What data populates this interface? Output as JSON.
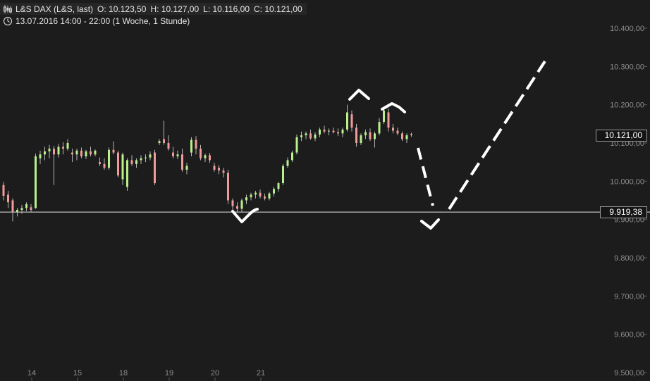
{
  "header": {
    "symbol": "L&S DAX (L&S, last)",
    "open": "O: 10.123,50",
    "high": "H: 10.127,00",
    "low": "L: 10.116,00",
    "close": "C: 10.121,00",
    "period": "13.07.2016 14:00 - 22:00 (1 Woche, 1 Stunde)",
    "chart_icon": "candlestick-icon",
    "time_icon": "clock-icon"
  },
  "colors": {
    "background": "#1c1c1c",
    "up": "#b8f08a",
    "down": "#f29a9a",
    "wick": "#b5b5b5",
    "axis_text": "#8c8c8c",
    "reference_line": "#e8e8e8",
    "annotation": "#ffffff"
  },
  "labels": {
    "last_price": "10.121,00",
    "reference_price": "9.919,38"
  },
  "chart_data": {
    "type": "candlestick",
    "title": "L&S DAX (L&S, last)",
    "ylim": [
      9500,
      10450
    ],
    "y_ticks": [
      {
        "value": 10400,
        "label": "10.400,00"
      },
      {
        "value": 10300,
        "label": "10.300,00"
      },
      {
        "value": 10200,
        "label": "10.200,00"
      },
      {
        "value": 10100,
        "label": "10.100,00"
      },
      {
        "value": 10000,
        "label": "10.000,00"
      },
      {
        "value": 9900,
        "label": "9.900,00"
      },
      {
        "value": 9800,
        "label": "9.800,00"
      },
      {
        "value": 9700,
        "label": "9.700,00"
      },
      {
        "value": 9600,
        "label": "9.600,00"
      },
      {
        "value": 9500,
        "label": "9.500,00"
      }
    ],
    "x_ticks": [
      {
        "index": 6,
        "label": "14"
      },
      {
        "index": 16,
        "label": "15"
      },
      {
        "index": 26,
        "label": "18"
      },
      {
        "index": 36,
        "label": "19"
      },
      {
        "index": 46,
        "label": "20"
      },
      {
        "index": 56,
        "label": "21"
      }
    ],
    "last_price": 10121.0,
    "reference_level": 9919.38,
    "ohlc": [
      [
        9990,
        9998,
        9950,
        9962
      ],
      [
        9965,
        9975,
        9930,
        9945
      ],
      [
        9950,
        9955,
        9895,
        9920
      ],
      [
        9920,
        9930,
        9908,
        9925
      ],
      [
        9925,
        9938,
        9915,
        9930
      ],
      [
        9930,
        9945,
        9922,
        9940
      ],
      [
        9932,
        9940,
        9920,
        9925
      ],
      [
        9930,
        10072,
        9928,
        10065
      ],
      [
        10060,
        10080,
        10045,
        10070
      ],
      [
        10070,
        10090,
        10055,
        10078
      ],
      [
        10078,
        10095,
        10060,
        10085
      ],
      [
        10085,
        10092,
        9990,
        10070
      ],
      [
        10070,
        10098,
        10062,
        10090
      ],
      [
        10090,
        10102,
        10070,
        10085
      ],
      [
        10085,
        10110,
        10080,
        10100
      ],
      [
        10075,
        10085,
        10050,
        10070
      ],
      [
        10070,
        10085,
        10055,
        10080
      ],
      [
        10080,
        10088,
        10060,
        10065
      ],
      [
        10065,
        10082,
        10058,
        10078
      ],
      [
        10078,
        10090,
        10065,
        10070
      ],
      [
        10070,
        10083,
        10065,
        10080
      ],
      [
        10050,
        10062,
        10040,
        10045
      ],
      [
        10045,
        10060,
        10030,
        10035
      ],
      [
        10035,
        10088,
        10030,
        10082
      ],
      [
        10082,
        10104,
        10070,
        10075
      ],
      [
        10075,
        10080,
        10010,
        10015
      ],
      [
        10005,
        10075,
        9990,
        10070
      ],
      [
        9985,
        10060,
        9975,
        10055
      ],
      [
        10055,
        10068,
        10040,
        10045
      ],
      [
        10045,
        10060,
        10035,
        10055
      ],
      [
        10055,
        10068,
        10045,
        10060
      ],
      [
        10060,
        10070,
        10050,
        10062
      ],
      [
        10062,
        10078,
        10055,
        10070
      ],
      [
        10075,
        10082,
        9990,
        9995
      ],
      [
        10100,
        10110,
        10095,
        10105
      ],
      [
        10110,
        10158,
        10095,
        10100
      ],
      [
        10100,
        10120,
        10080,
        10085
      ],
      [
        10075,
        10090,
        10060,
        10065
      ],
      [
        10065,
        10080,
        10058,
        10070
      ],
      [
        10070,
        10085,
        10025,
        10030
      ],
      [
        10030,
        10048,
        10018,
        10040
      ],
      [
        10075,
        10115,
        10065,
        10108
      ],
      [
        10108,
        10118,
        10070,
        10085
      ],
      [
        10085,
        10095,
        10055,
        10060
      ],
      [
        10060,
        10072,
        10050,
        10068
      ],
      [
        10068,
        10074,
        10048,
        10055
      ],
      [
        10040,
        10048,
        10025,
        10030
      ],
      [
        10035,
        10042,
        10018,
        10028
      ],
      [
        10028,
        10035,
        10010,
        10022
      ],
      [
        10022,
        10030,
        9940,
        9950
      ],
      [
        9950,
        9955,
        9920,
        9935
      ],
      [
        9935,
        9945,
        9918,
        9928
      ],
      [
        9928,
        9955,
        9920,
        9950
      ],
      [
        9950,
        9965,
        9940,
        9958
      ],
      [
        9958,
        9970,
        9950,
        9965
      ],
      [
        9965,
        9975,
        9955,
        9970
      ],
      [
        9970,
        9978,
        9955,
        9960
      ],
      [
        9960,
        9968,
        9950,
        9955
      ],
      [
        9955,
        9972,
        9950,
        9968
      ],
      [
        9968,
        9985,
        9960,
        9980
      ],
      [
        9980,
        9998,
        9972,
        9995
      ],
      [
        9995,
        10045,
        9990,
        10040
      ],
      [
        10040,
        10062,
        10035,
        10055
      ],
      [
        10055,
        10080,
        10050,
        10075
      ],
      [
        10075,
        10122,
        10070,
        10115
      ],
      [
        10115,
        10130,
        10105,
        10120
      ],
      [
        10120,
        10130,
        10110,
        10125
      ],
      [
        10125,
        10135,
        10108,
        10112
      ],
      [
        10112,
        10128,
        10105,
        10122
      ],
      [
        10122,
        10140,
        10115,
        10135
      ],
      [
        10135,
        10145,
        10125,
        10130
      ],
      [
        10130,
        10138,
        10120,
        10132
      ],
      [
        10132,
        10140,
        10125,
        10128
      ],
      [
        10128,
        10138,
        10118,
        10125
      ],
      [
        10125,
        10140,
        10115,
        10135
      ],
      [
        10135,
        10200,
        10130,
        10180
      ],
      [
        10175,
        10185,
        10130,
        10140
      ],
      [
        10140,
        10150,
        10090,
        10100
      ],
      [
        10100,
        10125,
        10095,
        10120
      ],
      [
        10120,
        10135,
        10110,
        10128
      ],
      [
        10128,
        10138,
        10105,
        10110
      ],
      [
        10110,
        10130,
        10088,
        10125
      ],
      [
        10125,
        10165,
        10120,
        10155
      ],
      [
        10155,
        10195,
        10150,
        10185
      ],
      [
        10180,
        10190,
        10130,
        10140
      ],
      [
        10140,
        10150,
        10125,
        10132
      ],
      [
        10132,
        10140,
        10120,
        10125
      ],
      [
        10125,
        10130,
        10105,
        10110
      ],
      [
        10110,
        10125,
        10100,
        10120
      ],
      [
        10123.5,
        10127,
        10116,
        10121
      ]
    ]
  }
}
